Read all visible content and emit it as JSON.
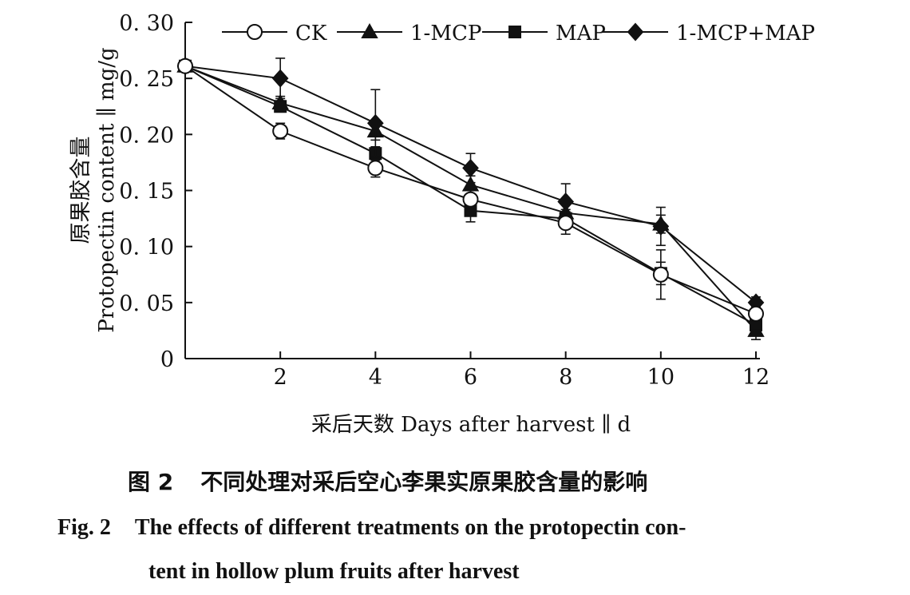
{
  "chart_data": {
    "type": "line",
    "title": "",
    "xlabel": "采后天数 Days after harvest ∥ d",
    "ylabel_cn": "原果胶含量",
    "ylabel_en": "Protopectin content ∥ mg/g",
    "x": [
      0,
      2,
      4,
      6,
      8,
      10,
      12
    ],
    "xticks": [
      "2",
      "4",
      "6",
      "8",
      "10",
      "12"
    ],
    "yticks": [
      "0",
      "0. 05",
      "0. 10",
      "0. 15",
      "0. 20",
      "0. 25",
      "0. 30"
    ],
    "xlim": [
      0,
      12
    ],
    "ylim": [
      0,
      0.3
    ],
    "grid": false,
    "legend_position": "top",
    "series": [
      {
        "name": "CK",
        "marker": "open-circle",
        "values": [
          0.261,
          0.203,
          0.17,
          0.142,
          0.121,
          0.075,
          0.04
        ],
        "errors": [
          0.003,
          0.007,
          0.008,
          0.008,
          0.01,
          0.022,
          0.006
        ]
      },
      {
        "name": "1-MCP",
        "marker": "triangle",
        "values": [
          0.261,
          0.228,
          0.203,
          0.155,
          0.13,
          0.12,
          0.025
        ],
        "errors": [
          0.003,
          0.006,
          0.008,
          0.008,
          0.01,
          0.008,
          0.008
        ]
      },
      {
        "name": "MAP",
        "marker": "square",
        "values": [
          0.261,
          0.225,
          0.183,
          0.132,
          0.125,
          0.076,
          0.03
        ],
        "errors": [
          0.003,
          0.005,
          0.006,
          0.01,
          0.008,
          0.01,
          0.005
        ]
      },
      {
        "name": "1-MCP+MAP",
        "marker": "diamond",
        "values": [
          0.261,
          0.25,
          0.21,
          0.17,
          0.14,
          0.118,
          0.05
        ],
        "errors": [
          0.003,
          0.018,
          0.03,
          0.013,
          0.016,
          0.017,
          0.005
        ]
      }
    ]
  },
  "caption": {
    "cn_label": "图 2",
    "cn_text": "不同处理对采后空心李果实原果胶含量的影响",
    "en_label": "Fig. 2",
    "en_line1": "The effects of different treatments on the protopectin con-",
    "en_line2": "tent in hollow plum fruits after harvest"
  }
}
